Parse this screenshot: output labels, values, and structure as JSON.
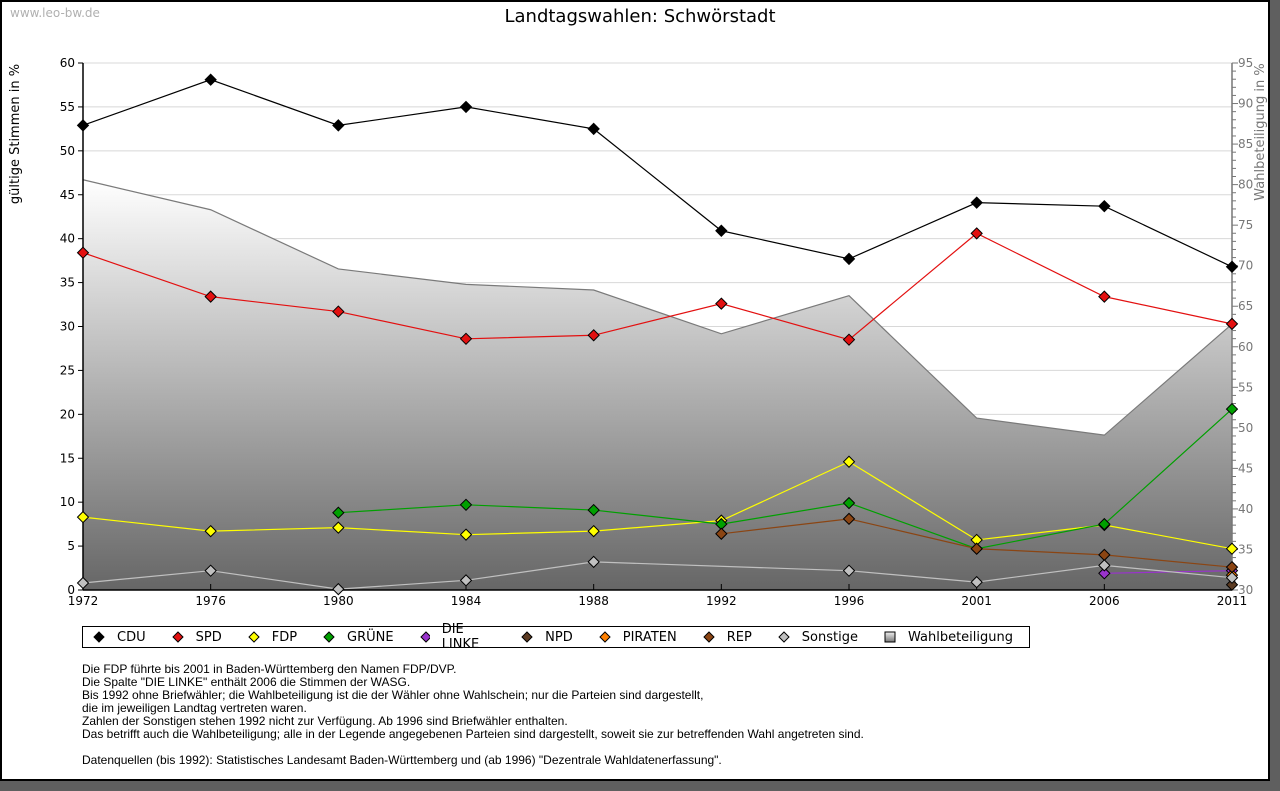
{
  "source": "www.leo-bw.de",
  "chart_data": {
    "type": "line",
    "title": "Landtagswahlen: Schwörstadt",
    "ylabel": "gültige Stimmen in %",
    "y2label": "Wahlbeteiligung in %",
    "ylim": [
      0,
      60
    ],
    "y2lim": [
      30,
      95
    ],
    "yticks": [
      "0",
      "5",
      "10",
      "15",
      "20",
      "25",
      "30",
      "35",
      "40",
      "45",
      "50",
      "55",
      "60"
    ],
    "y2ticks": [
      "30",
      "35",
      "40",
      "45",
      "50",
      "55",
      "60",
      "65",
      "70",
      "75",
      "80",
      "85",
      "90",
      "95"
    ],
    "grid": true,
    "x": [
      "1972",
      "1976",
      "1980",
      "1984",
      "1988",
      "1992",
      "1996",
      "2001",
      "2006",
      "2011"
    ],
    "series": [
      {
        "name": "CDU",
        "color": "#000000",
        "values": [
          52.9,
          58.1,
          52.9,
          55.0,
          52.5,
          40.9,
          37.7,
          44.1,
          43.7,
          36.8
        ]
      },
      {
        "name": "SPD",
        "color": "#e31010",
        "values": [
          38.4,
          33.4,
          31.7,
          28.6,
          29.0,
          32.6,
          28.5,
          40.6,
          33.4,
          30.3
        ]
      },
      {
        "name": "FDP",
        "color": "#ffff00",
        "values": [
          8.3,
          6.7,
          7.1,
          6.3,
          6.7,
          7.9,
          14.6,
          5.7,
          7.4,
          4.7
        ]
      },
      {
        "name": "GRÜNE",
        "color": "#00a000",
        "values": [
          null,
          null,
          8.8,
          9.7,
          9.1,
          7.5,
          9.9,
          4.7,
          7.5,
          20.6
        ]
      },
      {
        "name": "DIE LINKE",
        "color": "#9933cc",
        "values": [
          null,
          null,
          null,
          null,
          null,
          null,
          null,
          null,
          1.9,
          2.2
        ]
      },
      {
        "name": "NPD",
        "color": "#5c3b22",
        "values": [
          null,
          null,
          null,
          null,
          null,
          null,
          null,
          null,
          null,
          0.6
        ]
      },
      {
        "name": "PIRATEN",
        "color": "#ff8000",
        "values": [
          null,
          null,
          null,
          null,
          null,
          null,
          null,
          null,
          null,
          1.7
        ]
      },
      {
        "name": "REP",
        "color": "#8b4513",
        "values": [
          null,
          null,
          null,
          null,
          null,
          6.4,
          8.1,
          4.7,
          4.0,
          2.6
        ]
      },
      {
        "name": "Sonstige",
        "color": "#c0c0c0",
        "values": [
          0.8,
          2.2,
          0.1,
          1.1,
          3.2,
          null,
          2.2,
          0.9,
          2.8,
          1.4
        ]
      }
    ],
    "turnout": {
      "name": "Wahlbeteiligung",
      "axis": "right",
      "values": [
        80.6,
        76.9,
        69.6,
        67.7,
        67.0,
        61.6,
        66.3,
        51.2,
        49.1,
        62.8
      ]
    },
    "legend_position": "bottom"
  },
  "notes": [
    "Die FDP führte bis 2001 in Baden-Württemberg den Namen FDP/DVP.",
    "Die Spalte \"DIE LINKE\" enthält 2006 die Stimmen der WASG.",
    "Bis 1992 ohne Briefwähler; die Wahlbeteiligung ist die der Wähler ohne Wahlschein; nur die Parteien sind dargestellt,",
    "die im jeweiligen Landtag vertreten waren.",
    "Zahlen der Sonstigen stehen 1992 nicht zur Verfügung. Ab 1996 sind Briefwähler enthalten.",
    "Das betrifft auch die Wahlbeteiligung; alle in der Legende angegebenen Parteien sind dargestellt, soweit sie zur betreffenden Wahl angetreten sind.",
    "",
    "Datenquellen (bis 1992): Statistisches Landesamt Baden-Württemberg und (ab 1996) \"Dezentrale Wahldatenerfassung\"."
  ]
}
